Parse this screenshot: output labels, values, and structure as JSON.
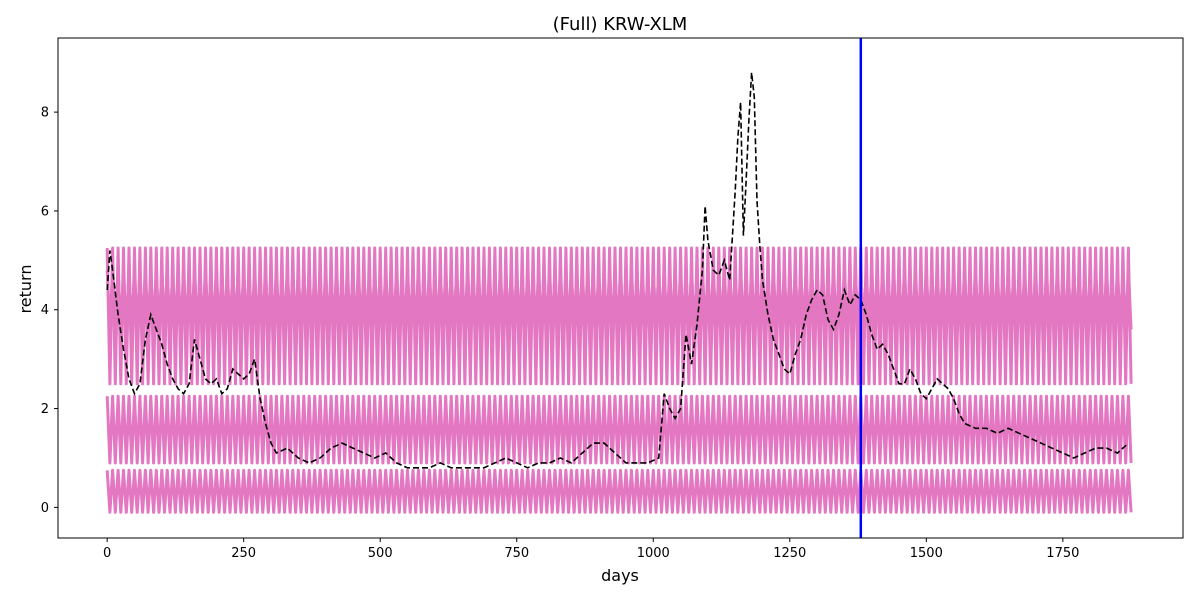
{
  "chart_data": {
    "type": "line",
    "title": "(Full) KRW-XLM",
    "xlabel": "days",
    "ylabel": "return",
    "xlim": [
      -90,
      1970
    ],
    "ylim": [
      -0.62,
      9.5
    ],
    "xticks": [
      0,
      250,
      500,
      750,
      1000,
      1250,
      1500,
      1750
    ],
    "yticks": [
      0,
      2,
      4,
      6,
      8
    ],
    "grid": false,
    "legend": "none",
    "vline": {
      "x": 1380,
      "color": "#0000ff"
    },
    "series": [
      {
        "style": "dashed",
        "color": "#000000",
        "points": [
          [
            0,
            4.4
          ],
          [
            5,
            5.2
          ],
          [
            10,
            4.8
          ],
          [
            20,
            3.9
          ],
          [
            30,
            3.2
          ],
          [
            40,
            2.6
          ],
          [
            50,
            2.3
          ],
          [
            60,
            2.5
          ],
          [
            70,
            3.4
          ],
          [
            80,
            3.9
          ],
          [
            90,
            3.6
          ],
          [
            100,
            3.3
          ],
          [
            110,
            2.9
          ],
          [
            120,
            2.6
          ],
          [
            130,
            2.4
          ],
          [
            140,
            2.3
          ],
          [
            150,
            2.5
          ],
          [
            160,
            3.4
          ],
          [
            170,
            3.0
          ],
          [
            180,
            2.6
          ],
          [
            190,
            2.5
          ],
          [
            200,
            2.6
          ],
          [
            210,
            2.3
          ],
          [
            220,
            2.4
          ],
          [
            230,
            2.8
          ],
          [
            240,
            2.7
          ],
          [
            250,
            2.6
          ],
          [
            260,
            2.7
          ],
          [
            270,
            3.0
          ],
          [
            280,
            2.2
          ],
          [
            290,
            1.7
          ],
          [
            300,
            1.3
          ],
          [
            310,
            1.1
          ],
          [
            330,
            1.2
          ],
          [
            350,
            1.0
          ],
          [
            370,
            0.9
          ],
          [
            390,
            1.0
          ],
          [
            410,
            1.2
          ],
          [
            430,
            1.3
          ],
          [
            450,
            1.2
          ],
          [
            470,
            1.1
          ],
          [
            490,
            1.0
          ],
          [
            510,
            1.1
          ],
          [
            530,
            0.9
          ],
          [
            550,
            0.8
          ],
          [
            570,
            0.8
          ],
          [
            590,
            0.8
          ],
          [
            610,
            0.9
          ],
          [
            630,
            0.8
          ],
          [
            650,
            0.8
          ],
          [
            670,
            0.8
          ],
          [
            690,
            0.8
          ],
          [
            710,
            0.9
          ],
          [
            730,
            1.0
          ],
          [
            750,
            0.9
          ],
          [
            770,
            0.8
          ],
          [
            790,
            0.9
          ],
          [
            810,
            0.9
          ],
          [
            830,
            1.0
          ],
          [
            850,
            0.9
          ],
          [
            870,
            1.1
          ],
          [
            890,
            1.3
          ],
          [
            910,
            1.3
          ],
          [
            930,
            1.1
          ],
          [
            950,
            0.9
          ],
          [
            970,
            0.9
          ],
          [
            990,
            0.9
          ],
          [
            1010,
            1.0
          ],
          [
            1020,
            2.3
          ],
          [
            1030,
            2.0
          ],
          [
            1040,
            1.8
          ],
          [
            1050,
            2.0
          ],
          [
            1060,
            3.5
          ],
          [
            1070,
            2.9
          ],
          [
            1080,
            3.7
          ],
          [
            1090,
            4.8
          ],
          [
            1095,
            6.1
          ],
          [
            1100,
            5.4
          ],
          [
            1110,
            4.8
          ],
          [
            1120,
            4.7
          ],
          [
            1130,
            5.0
          ],
          [
            1140,
            4.6
          ],
          [
            1150,
            6.4
          ],
          [
            1155,
            7.5
          ],
          [
            1160,
            8.2
          ],
          [
            1165,
            5.5
          ],
          [
            1170,
            6.6
          ],
          [
            1175,
            7.8
          ],
          [
            1180,
            8.8
          ],
          [
            1185,
            8.3
          ],
          [
            1190,
            6.2
          ],
          [
            1195,
            5.3
          ],
          [
            1200,
            4.6
          ],
          [
            1210,
            3.9
          ],
          [
            1220,
            3.4
          ],
          [
            1230,
            3.1
          ],
          [
            1240,
            2.8
          ],
          [
            1250,
            2.7
          ],
          [
            1260,
            3.1
          ],
          [
            1270,
            3.4
          ],
          [
            1280,
            3.9
          ],
          [
            1290,
            4.2
          ],
          [
            1300,
            4.4
          ],
          [
            1310,
            4.3
          ],
          [
            1320,
            3.8
          ],
          [
            1330,
            3.6
          ],
          [
            1340,
            3.9
          ],
          [
            1350,
            4.4
          ],
          [
            1360,
            4.1
          ],
          [
            1370,
            4.3
          ],
          [
            1380,
            4.2
          ],
          [
            1390,
            3.9
          ],
          [
            1400,
            3.5
          ],
          [
            1410,
            3.2
          ],
          [
            1420,
            3.3
          ],
          [
            1430,
            3.1
          ],
          [
            1440,
            2.8
          ],
          [
            1450,
            2.5
          ],
          [
            1460,
            2.5
          ],
          [
            1470,
            2.8
          ],
          [
            1480,
            2.6
          ],
          [
            1490,
            2.3
          ],
          [
            1500,
            2.2
          ],
          [
            1510,
            2.4
          ],
          [
            1520,
            2.6
          ],
          [
            1530,
            2.5
          ],
          [
            1540,
            2.4
          ],
          [
            1550,
            2.2
          ],
          [
            1560,
            1.9
          ],
          [
            1570,
            1.7
          ],
          [
            1590,
            1.6
          ],
          [
            1610,
            1.6
          ],
          [
            1630,
            1.5
          ],
          [
            1650,
            1.6
          ],
          [
            1670,
            1.5
          ],
          [
            1690,
            1.4
          ],
          [
            1710,
            1.3
          ],
          [
            1730,
            1.2
          ],
          [
            1750,
            1.1
          ],
          [
            1770,
            1.0
          ],
          [
            1790,
            1.1
          ],
          [
            1810,
            1.2
          ],
          [
            1830,
            1.2
          ],
          [
            1850,
            1.1
          ],
          [
            1860,
            1.2
          ],
          [
            1870,
            1.3
          ]
        ]
      },
      {
        "style": "solid",
        "color": "#e377c2",
        "bands": [
          [
            -0.1,
            0.75
          ],
          [
            0.9,
            2.25
          ],
          [
            2.5,
            5.25
          ],
          [
            3.6,
            4.8
          ]
        ],
        "period_days": 10,
        "x_range": [
          0,
          1875
        ]
      }
    ]
  }
}
